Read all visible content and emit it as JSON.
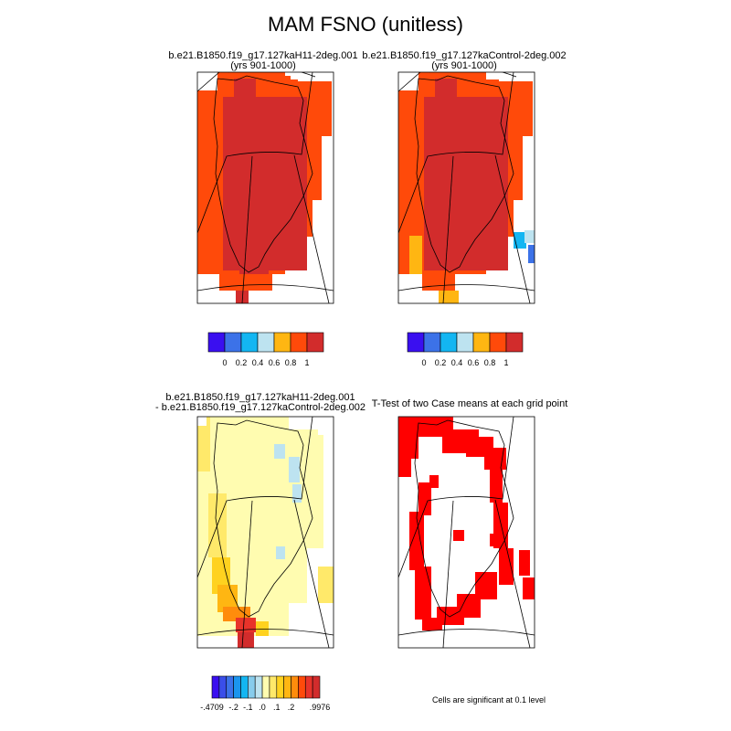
{
  "page_title": "MAM FSNO (unitless)",
  "panels": [
    {
      "title": [
        "b.e21.B1850.f19_g17.127kaH11-2deg.001",
        "(yrs 901-1000)"
      ]
    },
    {
      "title": [
        "b.e21.B1850.f19_g17.127kaControl-2deg.002",
        "(yrs 901-1000)"
      ]
    },
    {
      "title": [
        "b.e21.B1850.f19_g17.127kaH11-2deg.001",
        "- b.e21.B1850.f19_g17.127kaControl-2deg.002"
      ]
    },
    {
      "title": [
        "T-Test of two Case means at each grid point"
      ]
    }
  ],
  "significance_note": "Cells are significant at 0.1 level",
  "colorbars": {
    "fsno": {
      "colors": [
        "#3a0ff0",
        "#3c72e8",
        "#13b6f2",
        "#bde3f0",
        "#ffb612",
        "#ff4a0a",
        "#d22c2c"
      ],
      "tick_labels": [
        "0",
        "0.2",
        "0.4",
        "0.6",
        "0.8",
        "1"
      ]
    },
    "diff": {
      "colors": [
        "#3a0ff0",
        "#3a4ee9",
        "#3c72e8",
        "#1b95ee",
        "#13b6f2",
        "#87ccec",
        "#bde3f0",
        "#fffcb0",
        "#ffe96a",
        "#ffd21f",
        "#ffb612",
        "#ff8c0c",
        "#ff4a0a",
        "#e8332a",
        "#d22c2c"
      ],
      "tick_labels": [
        "-.4709",
        "-.2",
        "-.1",
        ".0",
        ".1",
        ".2",
        ".9976"
      ]
    }
  },
  "chart_data": [
    {
      "type": "heatmap",
      "region": "Greenland",
      "field": "FSNO",
      "dominant_levels": [
        "0.8",
        "1"
      ],
      "colorbar": "fsno"
    },
    {
      "type": "heatmap",
      "region": "Greenland",
      "field": "FSNO",
      "dominant_levels": [
        "0.8",
        "1"
      ],
      "other_levels": [
        "0.4",
        "0.6"
      ],
      "colorbar": "fsno"
    },
    {
      "type": "heatmap",
      "region": "Greenland",
      "field": "FSNO difference",
      "dominant_levels": [
        ".0",
        ".1"
      ],
      "colorbar": "diff"
    },
    {
      "type": "heatmap",
      "region": "Greenland",
      "field": "significance",
      "mark_color": "#ff0000"
    }
  ]
}
